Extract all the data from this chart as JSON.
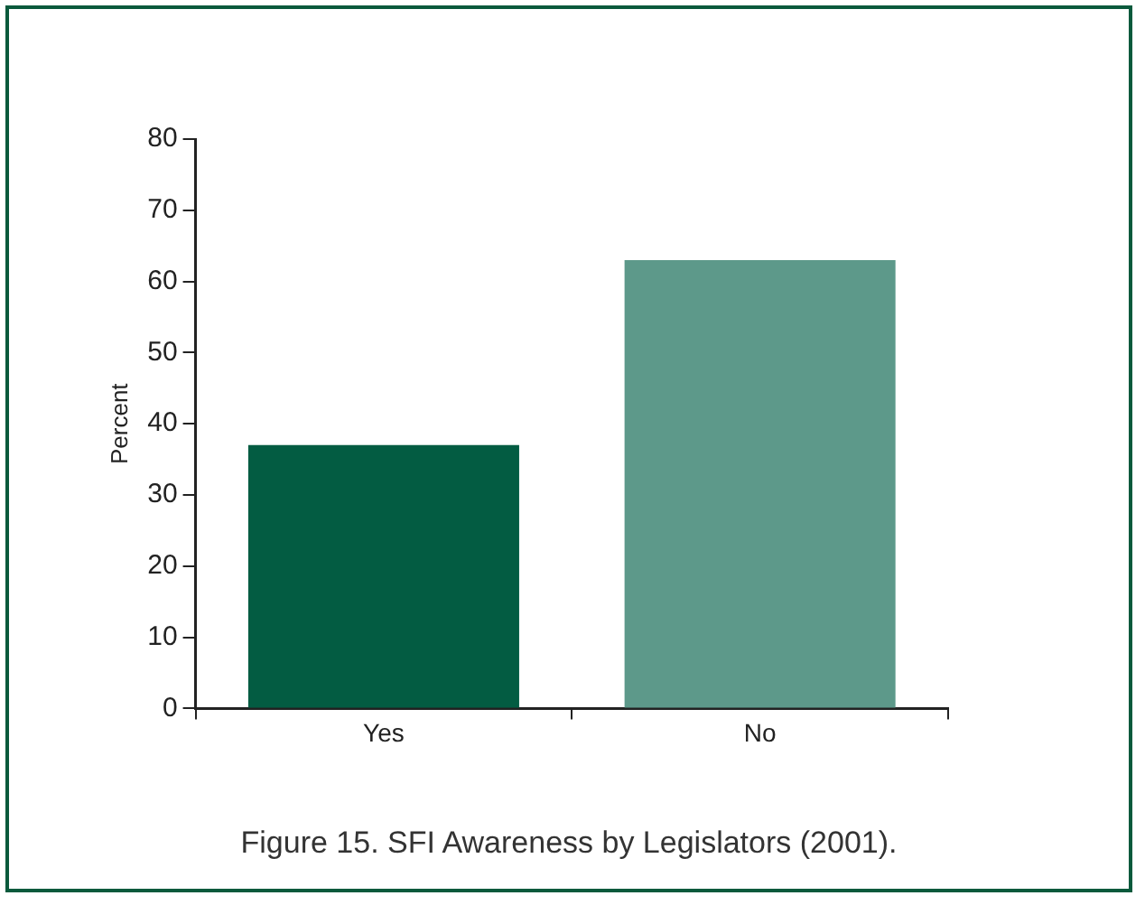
{
  "chart_data": {
    "type": "bar",
    "ylabel": "Percent",
    "categories": [
      "Yes",
      "No"
    ],
    "values": [
      37,
      63
    ],
    "colors": [
      "#035c42",
      "#5d998a"
    ],
    "ylim": [
      0,
      80
    ],
    "yticks": [
      0,
      10,
      20,
      30,
      40,
      50,
      60,
      70,
      80
    ],
    "grid": false,
    "legend": false,
    "annotations": [
      "Figure 15.  SFI Awareness by Legislators (2001)."
    ]
  }
}
